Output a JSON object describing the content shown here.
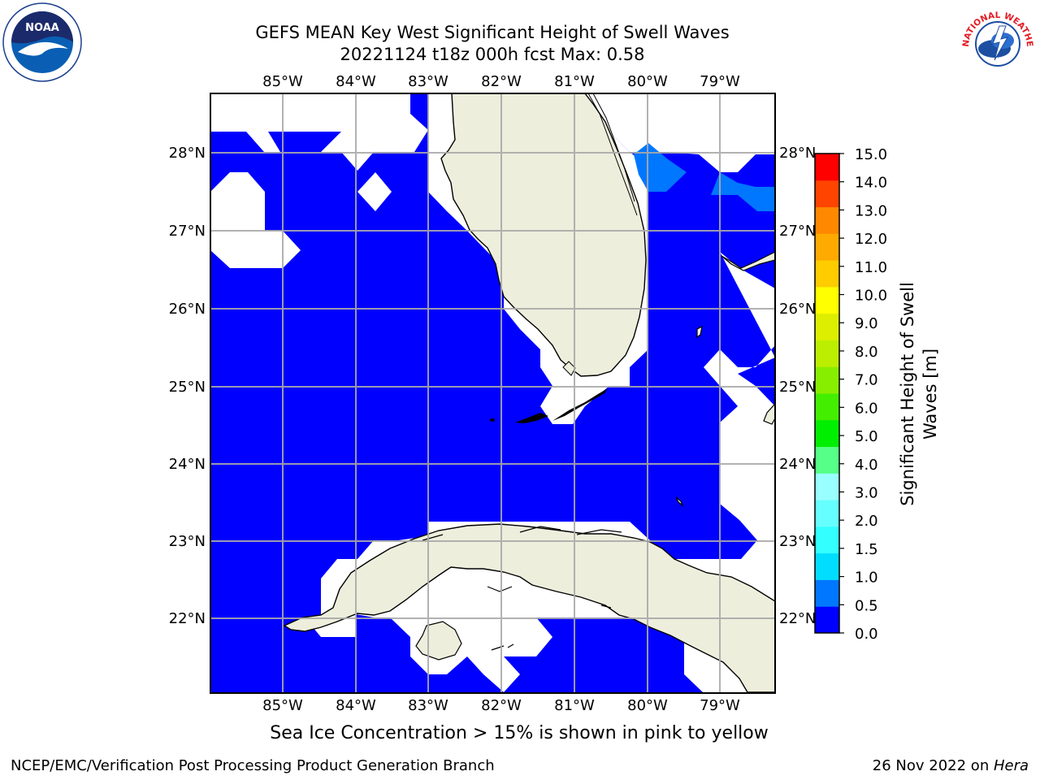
{
  "header": {
    "title_line1": "GEFS MEAN Key West Significant Height of Swell Waves",
    "title_line2": "20221124 t18z 000h fcst   Max: 0.58"
  },
  "map": {
    "lon_ticks": [
      "85°W",
      "84°W",
      "83°W",
      "82°W",
      "81°W",
      "80°W",
      "79°W"
    ],
    "lat_ticks": [
      "28°N",
      "27°N",
      "26°N",
      "25°N",
      "24°N",
      "23°N",
      "22°N"
    ],
    "ocean_color": "#0000ff",
    "land_color": "#eeeedd",
    "band_color": "#0077ff"
  },
  "colorbar": {
    "label_line1": "Significant Height of Swell",
    "label_line2": "Waves [m]",
    "ticks": [
      "0.0",
      "0.5",
      "1.0",
      "1.5",
      "2.0",
      "3.0",
      "4.0",
      "5.0",
      "6.0",
      "7.0",
      "8.0",
      "9.0",
      "10.0",
      "11.0",
      "12.0",
      "13.0",
      "14.0",
      "15.0"
    ],
    "colors": [
      "#0000ff",
      "#0077ff",
      "#00ddff",
      "#33ffff",
      "#66ffff",
      "#99ffff",
      "#55ff88",
      "#00ee00",
      "#44ee00",
      "#88ee00",
      "#bbee00",
      "#ddee00",
      "#ffff00",
      "#ffcc00",
      "#ffaa00",
      "#ff8800",
      "#ff4400",
      "#ff0000"
    ]
  },
  "notes": {
    "ice_note": "Sea Ice Concentration > 15% is shown in pink to yellow"
  },
  "footer": {
    "left": "NCEP/EMC/Verification Post Processing Product Generation Branch",
    "right_prefix": "26 Nov 2022 on ",
    "right_host": "Hera"
  },
  "logos": {
    "noaa_text": "NOAA",
    "nws_text": "NATIONAL WEATHER SERVICE"
  }
}
